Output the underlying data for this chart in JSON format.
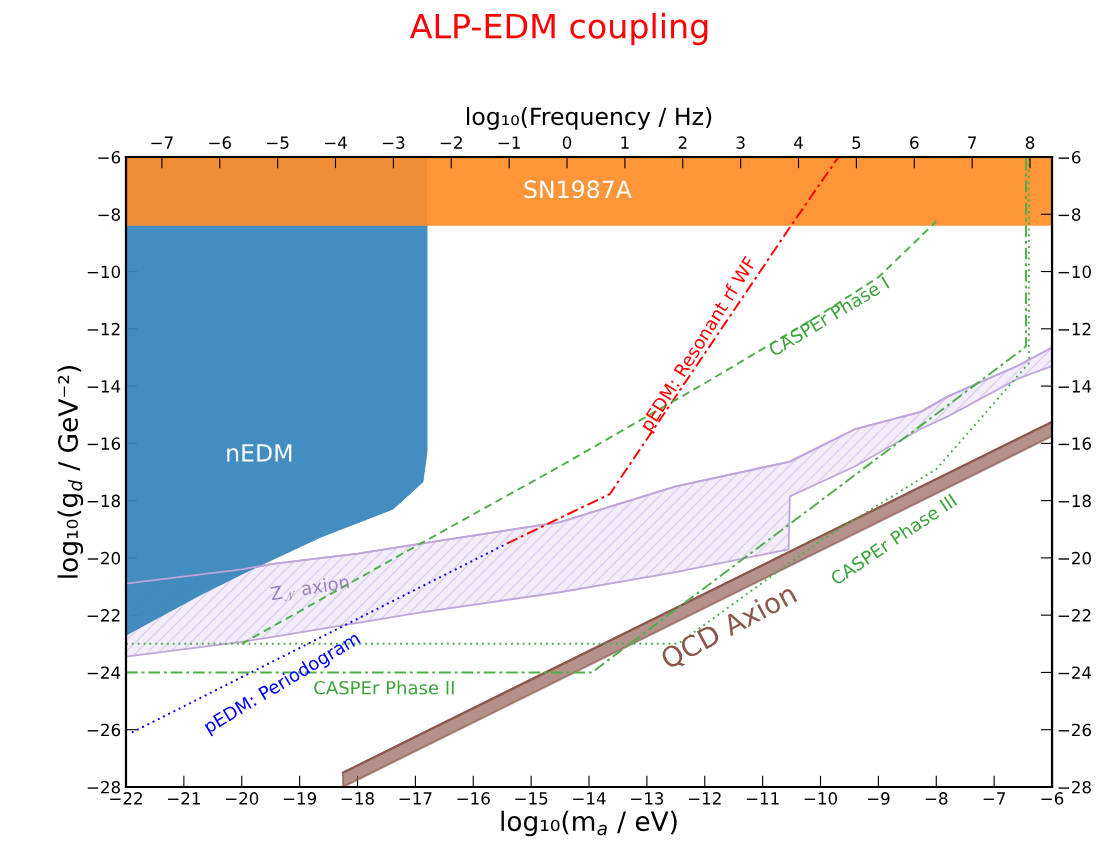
{
  "chart_data": {
    "type": "line",
    "title": "ALP-EDM coupling",
    "xlabel": "log₁₀(m$_{a}$ / eV)",
    "ylabel": "log₁₀(g$_{d}$ / GeV⁻²)",
    "x2label": "log₁₀(Frequency / Hz)",
    "xlim": [
      -22,
      -6
    ],
    "ylim": [
      -28,
      -6
    ],
    "y2lim": [
      -28,
      -6
    ],
    "x2lim": [
      -7.62,
      8.38
    ],
    "xticks": [
      {
        "value": -22,
        "label": "−22"
      },
      {
        "value": -21,
        "label": "−21"
      },
      {
        "value": -20,
        "label": "−20"
      },
      {
        "value": -19,
        "label": "−19"
      },
      {
        "value": -18,
        "label": "−18"
      },
      {
        "value": -17,
        "label": "−17"
      },
      {
        "value": -16,
        "label": "−16"
      },
      {
        "value": -15,
        "label": "−15"
      },
      {
        "value": -14,
        "label": "−14"
      },
      {
        "value": -13,
        "label": "−13"
      },
      {
        "value": -12,
        "label": "−12"
      },
      {
        "value": -11,
        "label": "−11"
      },
      {
        "value": -10,
        "label": "−10"
      },
      {
        "value": -9,
        "label": "−9"
      },
      {
        "value": -8,
        "label": "−8"
      },
      {
        "value": -7,
        "label": "−7"
      },
      {
        "value": -6,
        "label": "−6"
      }
    ],
    "yticks": [
      {
        "value": -28,
        "label": "−28"
      },
      {
        "value": -26,
        "label": "−26"
      },
      {
        "value": -24,
        "label": "−24"
      },
      {
        "value": -22,
        "label": "−22"
      },
      {
        "value": -20,
        "label": "−20"
      },
      {
        "value": -18,
        "label": "−18"
      },
      {
        "value": -16,
        "label": "−16"
      },
      {
        "value": -14,
        "label": "−14"
      },
      {
        "value": -12,
        "label": "−12"
      },
      {
        "value": -10,
        "label": "−10"
      },
      {
        "value": -8,
        "label": "−8"
      },
      {
        "value": -6,
        "label": "−6"
      }
    ],
    "y2ticks": [
      {
        "value": -28,
        "label": "−28"
      },
      {
        "value": -26,
        "label": "−26"
      },
      {
        "value": -24,
        "label": "−24"
      },
      {
        "value": -22,
        "label": "−22"
      },
      {
        "value": -20,
        "label": "−20"
      },
      {
        "value": -18,
        "label": "−18"
      },
      {
        "value": -16,
        "label": "−16"
      },
      {
        "value": -14,
        "label": "−14"
      },
      {
        "value": -12,
        "label": "−12"
      },
      {
        "value": -10,
        "label": "−10"
      },
      {
        "value": -8,
        "label": "−8"
      },
      {
        "value": -6,
        "label": "−6"
      }
    ],
    "x2ticks": [
      {
        "value": -7,
        "label": "−7"
      },
      {
        "value": -6,
        "label": "−6"
      },
      {
        "value": -5,
        "label": "−5"
      },
      {
        "value": -4,
        "label": "−4"
      },
      {
        "value": -3,
        "label": "−3"
      },
      {
        "value": -2,
        "label": "−2"
      },
      {
        "value": -1,
        "label": "−1"
      },
      0,
      1,
      2,
      3,
      4,
      5,
      6,
      7,
      8
    ],
    "grid": false,
    "legend": false,
    "bands": [
      {
        "axis": "y",
        "from": -8.4,
        "to": -6,
        "label": "SN1987A",
        "color": "#ff8c28"
      }
    ],
    "series": [
      {
        "color": "#3584bb",
        "line_style": "solid",
        "x": [
          -22,
          -20.72,
          -19.93,
          -18.63,
          -17.39,
          -16.87,
          -16.8,
          -16.8
        ],
        "values": [
          -22.7,
          -21.3,
          -20.5,
          -19.27,
          -18.3,
          -17.35,
          -16.3,
          -8.4
        ],
        "lower": [
          -22.7,
          -21.3,
          -20.5,
          -19.27,
          -18.3,
          -17.35,
          -16.3,
          -6
        ],
        "upper": [
          -6,
          -6,
          -6,
          -6,
          -6,
          -6,
          -6,
          -6
        ]
      },
      {
        "color": "#c0a5dc",
        "line_style": "solid",
        "x": [
          -22,
          -20,
          -19.43,
          -18,
          -16.9,
          -14.5,
          -12.5,
          -10.55,
          -10.53,
          -9.4,
          -8.27,
          -7.79,
          -6.6,
          -6
        ],
        "values": [
          -20.9,
          -20.4,
          -20.2,
          -19.85,
          -19.5,
          -18.75,
          -17.5,
          -16.65,
          -16.64,
          -15.5,
          -14.9,
          -14.35,
          -13.3,
          -12.65
        ],
        "lower": [
          -23.45,
          -22.93,
          -22.75,
          -22.27,
          -21.9,
          -21.2,
          -20.5,
          -19.7,
          -17.85,
          -16.8,
          -15.5,
          -15.05,
          -13.75,
          -13.3
        ],
        "upper": [
          -20.9,
          -20.4,
          -20.2,
          -19.85,
          -19.5,
          -18.75,
          -17.5,
          -16.65,
          -16.64,
          -15.5,
          -14.9,
          -14.35,
          -13.3,
          -12.65
        ]
      },
      {
        "color": "#8c564b",
        "line_style": "solid",
        "x": [
          -18.25,
          -6
        ],
        "values": [
          -27.5,
          -15.25
        ],
        "lower": [
          -28.0,
          -15.75
        ],
        "upper": [
          -27.5,
          -15.25
        ]
      },
      {
        "color": "#0000ff",
        "line_style": "dotted",
        "x": [
          -21.9,
          -15.42
        ],
        "values": [
          -26.1,
          -19.5
        ]
      },
      {
        "color": "#ff0000",
        "line_style": "dashdot",
        "x": [
          -15.42,
          -13.64,
          -10.5,
          -9.69
        ],
        "values": [
          -19.5,
          -17.77,
          -8.37,
          -6
        ]
      },
      {
        "color": "#4daf4a",
        "line_style": "dashed",
        "x": [
          -20,
          -17,
          -14.5,
          -12,
          -10,
          -9,
          -8
        ],
        "values": [
          -23,
          -19.6,
          -16.8,
          -13.9,
          -11.5,
          -10.2,
          -8.25
        ]
      },
      {
        "color": "#4daf4a",
        "line_style": "dashdot",
        "x": [
          -22,
          -13.95,
          -6.5,
          -6.45,
          -6.45
        ],
        "values": [
          -24,
          -24,
          -12.7,
          -12.6,
          -6
        ]
      },
      {
        "color": "#4daf4a",
        "line_style": "dotted",
        "x": [
          -22,
          -12.46,
          -10,
          -8,
          -6.4,
          -6.4
        ],
        "values": [
          -23,
          -23,
          -19.4,
          -16.9,
          -13.2,
          -6
        ]
      }
    ],
    "annotations": [
      "nEDM",
      "Z$_{𝒩}$ axion",
      "pEDM: Periodogram",
      "CASPEr Phase II",
      "pEDM: Resonant rf WF",
      "CASPEr Phase I",
      "CASPEr Phase III",
      "QCD Axion"
    ]
  }
}
